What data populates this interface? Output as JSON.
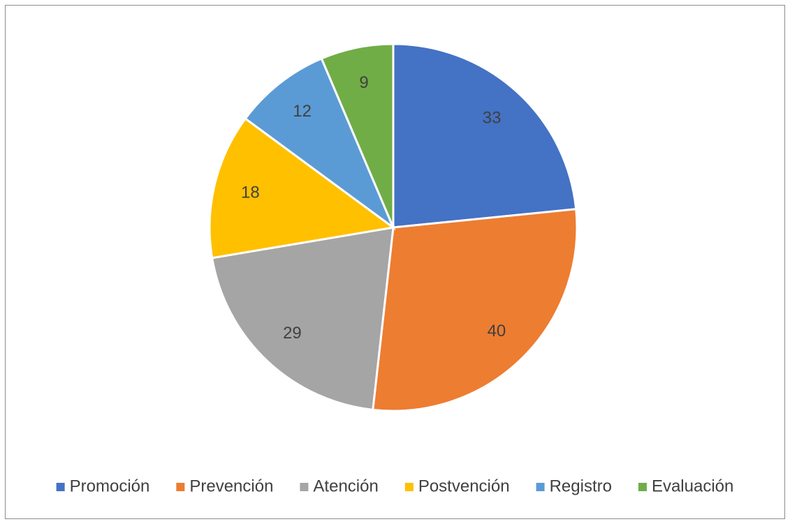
{
  "chart_data": {
    "type": "pie",
    "categories": [
      "Promoción",
      "Prevención",
      "Atención",
      "Postvención",
      "Registro",
      "Evaluación"
    ],
    "values": [
      33,
      40,
      29,
      18,
      12,
      9
    ],
    "colors": [
      "#4472c4",
      "#ed7d31",
      "#a5a5a5",
      "#ffc000",
      "#5b9bd5",
      "#70ad47"
    ],
    "legend": "bottom"
  }
}
